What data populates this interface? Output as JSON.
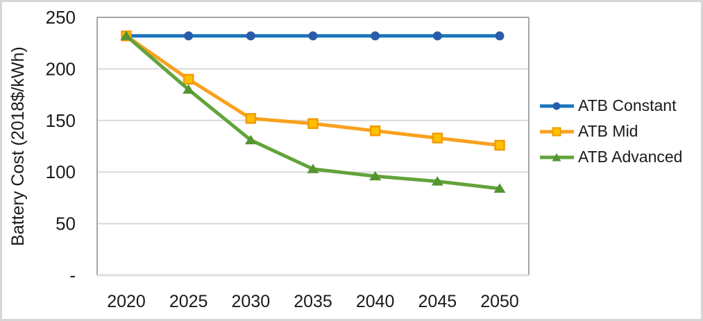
{
  "chart_data": {
    "type": "line",
    "title": "",
    "xlabel": "",
    "ylabel": "Battery Cost (2018$/kWh)",
    "categories": [
      "2020",
      "2025",
      "2030",
      "2035",
      "2040",
      "2045",
      "2050"
    ],
    "ylim": [
      0,
      250
    ],
    "grid": "horizontal",
    "legend_position": "right-center",
    "y_ticks": [
      {
        "value": 250,
        "label": "250"
      },
      {
        "value": 200,
        "label": "200"
      },
      {
        "value": 150,
        "label": "150"
      },
      {
        "value": 100,
        "label": "100"
      },
      {
        "value": 50,
        "label": "50"
      },
      {
        "value": 0,
        "label": "-"
      }
    ],
    "series": [
      {
        "name": "ATB Constant",
        "marker": "circle",
        "line_color": "#1B75BE",
        "marker_color": "#2A5CAA",
        "values": [
          232,
          232,
          232,
          232,
          232,
          232,
          232
        ]
      },
      {
        "name": "ATB Mid",
        "marker": "square",
        "line_color": "#F9A11E",
        "marker_color": "#FFC000",
        "marker_stroke": "#F29B05",
        "values": [
          232,
          190,
          152,
          147,
          140,
          133,
          126
        ]
      },
      {
        "name": "ATB Advanced",
        "marker": "triangle",
        "line_color": "#62A33A",
        "marker_color": "#549431",
        "values": [
          232,
          180,
          131,
          103,
          96,
          91,
          84
        ]
      }
    ],
    "colors": {
      "gridline": "#D9D9D9",
      "plot_border": "#A6A6A6",
      "bottom_axis": "#DDDDDD",
      "text": "#1A1A1A"
    }
  }
}
